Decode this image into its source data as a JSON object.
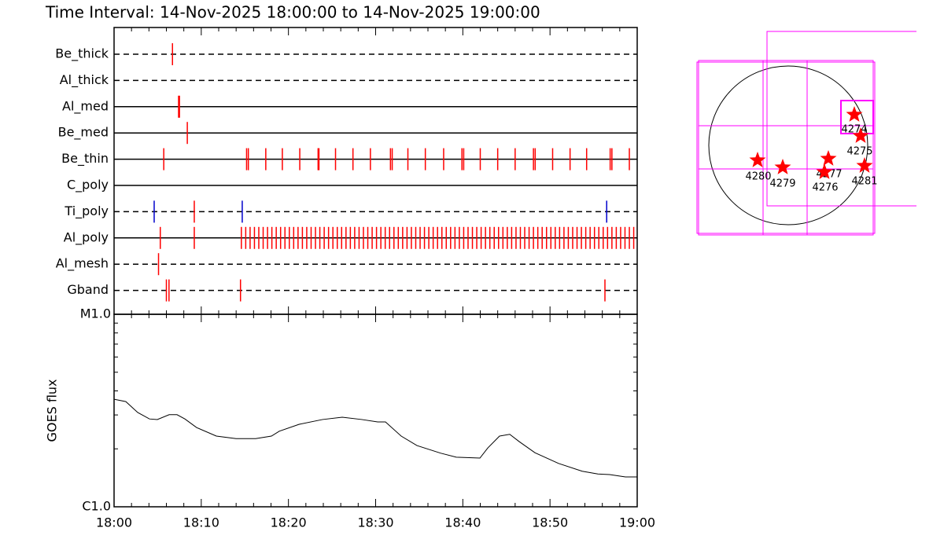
{
  "title": "Time Interval: 14-Nov-2025 18:00:00 to 14-Nov-2025 19:00:00",
  "chart_data": [
    {
      "type": "timeline",
      "xlim": [
        0,
        60
      ],
      "xticks": [
        {
          "value": 0,
          "label": "18:00"
        },
        {
          "value": 10,
          "label": "18:10"
        },
        {
          "value": 20,
          "label": "18:20"
        },
        {
          "value": 30,
          "label": "18:30"
        },
        {
          "value": 40,
          "label": "18:40"
        },
        {
          "value": 50,
          "label": "18:50"
        },
        {
          "value": 60,
          "label": "19:00"
        }
      ],
      "minor_xticks": [
        2,
        4,
        6,
        8,
        12,
        14,
        16,
        18,
        22,
        24,
        26,
        28,
        32,
        34,
        36,
        38,
        42,
        44,
        46,
        48,
        52,
        54,
        56,
        58
      ],
      "rows": [
        {
          "name": "Be_thick",
          "style": "dashed",
          "events": [
            {
              "color": "#ff0000",
              "values": [
                6.7
              ]
            }
          ]
        },
        {
          "name": "Al_thick",
          "style": "dashed",
          "events": []
        },
        {
          "name": "Al_med",
          "style": "solid",
          "events": [
            {
              "color": "#ff0000",
              "values": [
                7.4,
                7.5
              ]
            }
          ]
        },
        {
          "name": "Be_med",
          "style": "solid",
          "events": [
            {
              "color": "#ff0000",
              "values": [
                8.4
              ]
            }
          ]
        },
        {
          "name": "Be_thin",
          "style": "solid",
          "events": [
            {
              "color": "#ff0000",
              "values": [
                5.7,
                15.2,
                15.4,
                17.4,
                19.3,
                21.3,
                23.4,
                23.5,
                25.4,
                27.4,
                29.4,
                31.7,
                31.9,
                33.7,
                35.7,
                37.8,
                39.9,
                40.1,
                42.0,
                44.0,
                46.0,
                48.1,
                48.3,
                50.3,
                52.3,
                54.2,
                56.9,
                57.1,
                59.1
              ]
            }
          ]
        },
        {
          "name": "C_poly",
          "style": "solid",
          "events": []
        },
        {
          "name": "Ti_poly",
          "style": "dashed",
          "events": [
            {
              "color": "#ff0000",
              "values": [
                9.2
              ]
            },
            {
              "color": "#0000cc",
              "values": [
                4.6,
                14.7,
                56.5
              ]
            }
          ]
        },
        {
          "name": "Al_poly",
          "style": "solid",
          "events": [
            {
              "color": "#ff0000",
              "values": [
                5.3,
                9.2,
                14.6,
                15.1,
                15.6,
                16.1,
                16.6,
                17.1,
                17.6,
                18.1,
                18.6,
                19.1,
                19.6,
                20.1,
                20.6,
                21.1,
                21.6,
                22.1,
                22.6,
                23.1,
                23.6,
                24.1,
                24.6,
                25.1,
                25.6,
                26.1,
                26.6,
                27.1,
                27.6,
                28.1,
                28.6,
                29.1,
                29.6,
                30.1,
                30.6,
                31.1,
                31.6,
                32.1,
                32.6,
                33.1,
                33.6,
                34.1,
                34.6,
                35.1,
                35.6,
                36.1,
                36.6,
                37.1,
                37.6,
                38.1,
                38.6,
                39.1,
                39.6,
                40.1,
                40.6,
                41.1,
                41.6,
                42.1,
                42.6,
                43.1,
                43.6,
                44.1,
                44.6,
                45.1,
                45.6,
                46.1,
                46.6,
                47.1,
                47.6,
                48.1,
                48.6,
                49.1,
                49.6,
                50.1,
                50.6,
                51.1,
                51.6,
                52.1,
                52.6,
                53.1,
                53.6,
                54.1,
                54.6,
                55.1,
                55.6,
                56.1,
                56.6,
                57.1,
                57.6,
                58.1,
                58.6,
                59.1,
                59.6
              ]
            }
          ]
        },
        {
          "name": "Al_mesh",
          "style": "dashed",
          "events": [
            {
              "color": "#ff0000",
              "values": [
                5.1
              ]
            }
          ]
        },
        {
          "name": "Gband",
          "style": "dashed",
          "events": [
            {
              "color": "#ff0000",
              "values": [
                6.0,
                6.3,
                14.5,
                56.3
              ]
            }
          ]
        }
      ]
    },
    {
      "type": "line",
      "ylabel": "GOES flux",
      "log": true,
      "color": "#000000",
      "xlim": [
        0,
        60
      ],
      "ylim": [
        1e-06,
        1e-05
      ],
      "yticks": [
        {
          "value": 1e-06,
          "label": "C1.0"
        },
        {
          "value": 1e-05,
          "label": "M1.0"
        }
      ],
      "minor_yticks": [
        2e-06,
        3e-06,
        4e-06,
        5e-06,
        6e-06,
        7e-06,
        8e-06,
        9e-06
      ],
      "x": [
        0,
        1.35,
        2.71,
        4.06,
        4.96,
        6.32,
        7.22,
        8.12,
        9.47,
        11.73,
        13.99,
        16.24,
        18.05,
        18.95,
        21.2,
        23.91,
        26.17,
        28.42,
        30.23,
        31.13,
        32.93,
        34.74,
        37.44,
        39.25,
        41.96,
        42.86,
        44.21,
        45.38,
        46.47,
        48.27,
        50.98,
        53.69,
        55.49,
        56.84,
        58.65,
        60
      ],
      "values": [
        3.62e-06,
        3.52e-06,
        3.09e-06,
        2.86e-06,
        2.84e-06,
        3.01e-06,
        3.01e-06,
        2.86e-06,
        2.58e-06,
        2.33e-06,
        2.26e-06,
        2.26e-06,
        2.33e-06,
        2.47e-06,
        2.68e-06,
        2.84e-06,
        2.92e-06,
        2.84e-06,
        2.76e-06,
        2.76e-06,
        2.33e-06,
        2.08e-06,
        1.9e-06,
        1.81e-06,
        1.79e-06,
        2.02e-06,
        2.33e-06,
        2.38e-06,
        2.18e-06,
        1.91e-06,
        1.68e-06,
        1.53e-06,
        1.48e-06,
        1.47e-06,
        1.43e-06,
        1.43e-06
      ]
    }
  ],
  "map": {
    "regions": [
      {
        "label": "4274"
      },
      {
        "label": "4275"
      },
      {
        "label": "4277"
      },
      {
        "label": "4276"
      },
      {
        "label": "4280"
      },
      {
        "label": "4279"
      },
      {
        "label": "4281"
      }
    ]
  }
}
